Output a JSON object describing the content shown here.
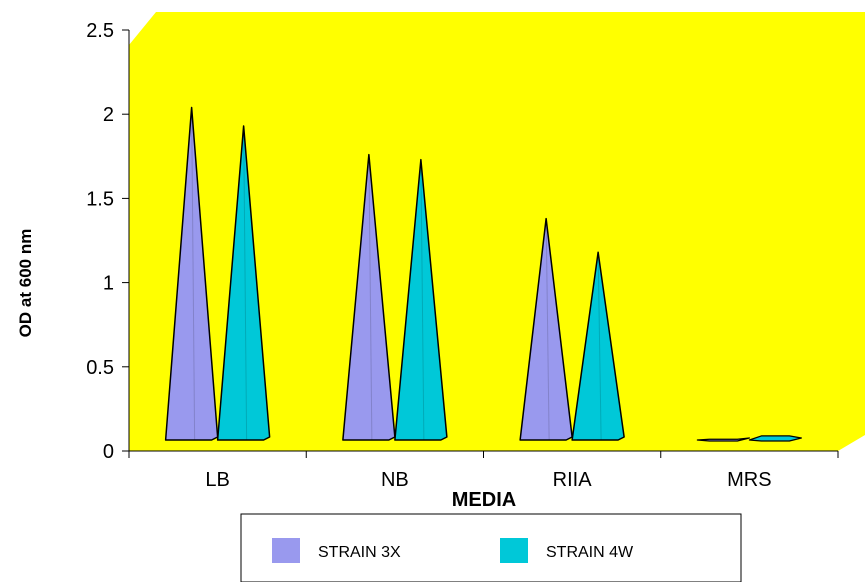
{
  "chart_data": {
    "type": "bar",
    "title": "",
    "xlabel": "MEDIA",
    "ylabel": "OD at 600 nm",
    "categories": [
      "LB",
      "NB",
      "RIIA",
      "MRS"
    ],
    "series": [
      {
        "name": "STRAIN 3X",
        "values": [
          2.04,
          1.76,
          1.38,
          0.04
        ],
        "color": "#9999EE"
      },
      {
        "name": "STRAIN 4W",
        "values": [
          1.93,
          1.73,
          1.18,
          0.06
        ],
        "color": "#00C8D8"
      }
    ],
    "ylim": [
      0,
      2.5
    ],
    "yticks": [
      "0",
      "0.5",
      "1",
      "1.5",
      "2",
      "2.5"
    ],
    "grid": false,
    "legend": "bottom",
    "background_color": "#FFFF00"
  }
}
